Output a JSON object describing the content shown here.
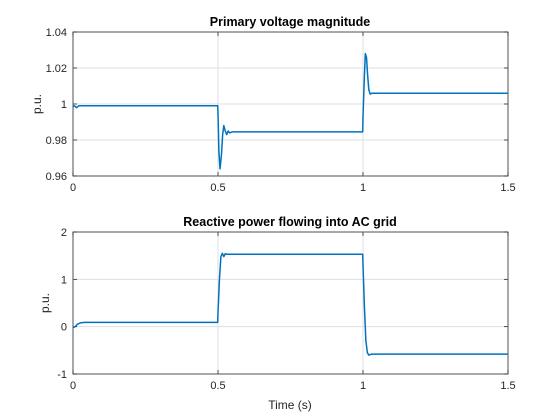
{
  "chart_data": [
    {
      "type": "line",
      "title": "Primary voltage magnitude",
      "xlabel": "",
      "ylabel": "p.u.",
      "xlim": [
        0,
        1.5
      ],
      "ylim": [
        0.96,
        1.04
      ],
      "xticks": [
        0,
        0.5,
        1,
        1.5
      ],
      "xtick_labels": [
        "0",
        "0.5",
        "1",
        "1.5"
      ],
      "yticks": [
        0.96,
        0.98,
        1,
        1.02,
        1.04
      ],
      "ytick_labels": [
        "0.96",
        "0.98",
        "1",
        "1.02",
        "1.04"
      ],
      "grid": true,
      "series": [
        {
          "color": "#0072BD",
          "x": [
            0,
            0.005,
            0.012,
            0.02,
            0.03,
            0.499,
            0.5,
            0.503,
            0.507,
            0.512,
            0.516,
            0.52,
            0.525,
            0.53,
            0.535,
            0.54,
            0.55,
            0.56,
            0.999,
            1.0,
            1.004,
            1.008,
            1.012,
            1.016,
            1.02,
            1.025,
            1.03,
            1.04,
            1.5
          ],
          "y": [
            0.9985,
            0.999,
            0.998,
            0.999,
            0.999,
            0.999,
            0.995,
            0.974,
            0.964,
            0.972,
            0.983,
            0.988,
            0.985,
            0.983,
            0.985,
            0.984,
            0.9845,
            0.9845,
            0.9845,
            0.993,
            1.012,
            1.028,
            1.026,
            1.016,
            1.008,
            1.0055,
            1.006,
            1.006,
            1.006
          ]
        }
      ]
    },
    {
      "type": "line",
      "title": "Reactive power flowing into AC grid",
      "xlabel": "Time (s)",
      "ylabel": "p.u.",
      "xlim": [
        0,
        1.5
      ],
      "ylim": [
        -1,
        2
      ],
      "xticks": [
        0,
        0.5,
        1,
        1.5
      ],
      "xtick_labels": [
        "0",
        "0.5",
        "1",
        "1.5"
      ],
      "yticks": [
        -1,
        0,
        1,
        2
      ],
      "ytick_labels": [
        "-1",
        "0",
        "1",
        "2"
      ],
      "grid": true,
      "series": [
        {
          "color": "#0072BD",
          "x": [
            0,
            0.008,
            0.015,
            0.025,
            0.04,
            0.499,
            0.5,
            0.505,
            0.51,
            0.515,
            0.52,
            0.525,
            0.53,
            0.54,
            0.55,
            0.999,
            1.0,
            1.005,
            1.01,
            1.015,
            1.02,
            1.03,
            1.04,
            1.5
          ],
          "y": [
            -0.02,
            0.0,
            0.05,
            0.08,
            0.09,
            0.09,
            0.3,
            1.0,
            1.48,
            1.55,
            1.48,
            1.54,
            1.53,
            1.53,
            1.53,
            1.53,
            1.3,
            0.4,
            -0.3,
            -0.55,
            -0.6,
            -0.58,
            -0.58,
            -0.58
          ]
        }
      ]
    }
  ]
}
